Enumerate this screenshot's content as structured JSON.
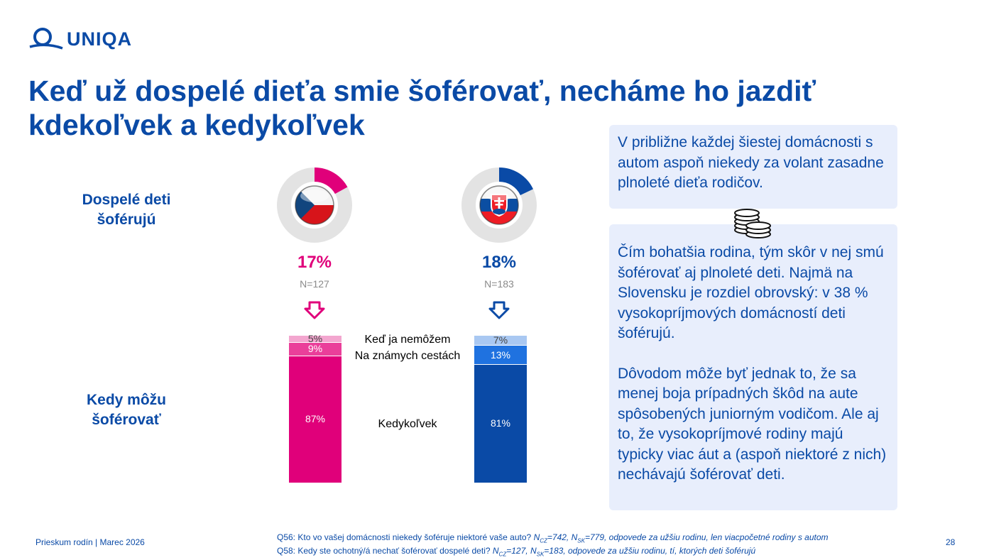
{
  "brand": {
    "name": "UNIQA",
    "color": "#0a4aa6"
  },
  "title": "Keď už dospelé dieťa smie šoférovať, necháme ho jazdiť kdekoľvek a kedykoľvek",
  "row_labels": {
    "drive": "Dospelé deti šoférujú",
    "when": "Kedy môžu šoférovať"
  },
  "chart_data": [
    {
      "type": "pie",
      "country": "CZ",
      "flag_icon": "czech-flag-icon",
      "values": [
        17,
        83
      ],
      "label": "17%",
      "n_label": "N=127",
      "colors": [
        "#e0007a",
        "#e3e3e3"
      ]
    },
    {
      "type": "pie",
      "country": "SK",
      "flag_icon": "slovak-flag-icon",
      "values": [
        18,
        82
      ],
      "label": "18%",
      "n_label": "N=183",
      "colors": [
        "#0a4aa6",
        "#e3e3e3"
      ]
    },
    {
      "type": "bar",
      "stacked": true,
      "categories": [
        "Keď ja nemôžem",
        "Na známych cestách",
        "Kedykoľvek"
      ],
      "series": [
        {
          "values": [
            5,
            9,
            87
          ],
          "labels": [
            "5%",
            "9%",
            "87%"
          ],
          "colors": [
            "#f3a6cf",
            "#ea3f9a",
            "#e0007a"
          ]
        },
        {
          "values": [
            7,
            13,
            81
          ],
          "labels": [
            "7%",
            "13%",
            "81%"
          ],
          "colors": [
            "#a9c8f2",
            "#1f72e0",
            "#0a4aa6"
          ]
        }
      ]
    }
  ],
  "box1": "V približne každej šiestej domácnosti s autom aspoň niekedy za volant zasadne plnoleté dieťa rodičov.",
  "coins_icon": "coins-icon",
  "box2": {
    "p1": "Čím bohatšia rodina, tým skôr v nej smú šoférovať aj plnoleté deti. Najmä na Slovensku je rozdiel obrovský: v 38 % vysokopríjmových domácností deti šoférujú.",
    "p2": "Dôvodom môže byť jednak to, že sa menej boja prípadných škôd na aute spôsobených juniorným vodičom. Ale aj to, že vysokopríjmové rodiny majú typicky viac áut a (aspoň niektoré z nich) nechávajú šoférovať deti."
  },
  "footer": {
    "left": "Prieskum rodín | Marec 2026",
    "q56_main": "Q56: Kto vo vašej domácnosti niekedy šoféruje niektoré vaše auto?",
    "q56_n": "N",
    "q56_cz_sub": "CZ",
    "q56_cz_val": "=742,",
    "q56_sk_sub": "SK",
    "q56_rest": "=779, odpovede za užšiu rodinu, len viacpočetné rodiny s autom",
    "q58_main": "Q58: Kedy ste ochotný/á nechať šoférovať dospelé deti?",
    "q58_cz_val": "=127,",
    "q58_rest": "=183, odpovede za užšiu rodinu, tí, ktorých deti šoférujú",
    "page": "28"
  }
}
